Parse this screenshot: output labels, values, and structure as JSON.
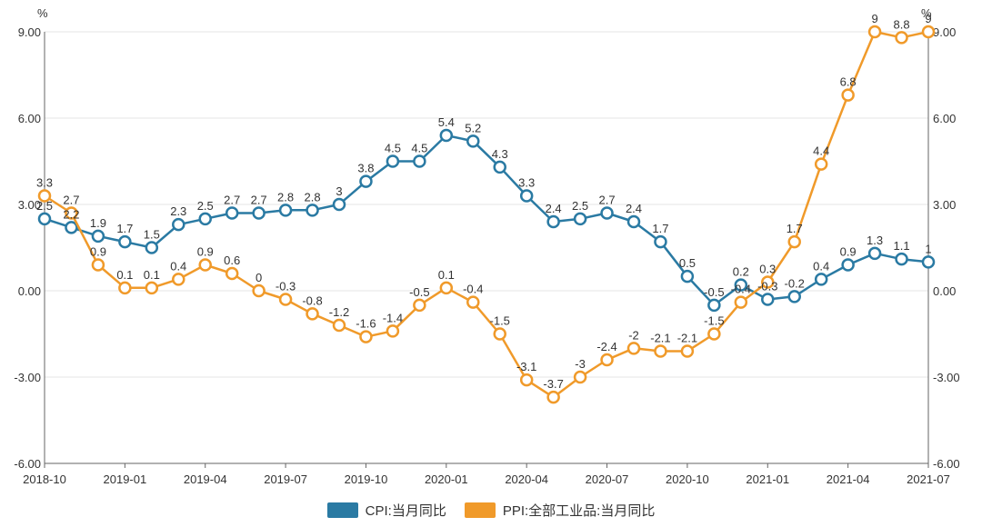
{
  "chart_data": {
    "type": "line",
    "title": "",
    "left_unit": "%",
    "right_unit": "%",
    "ylim": [
      -6,
      9
    ],
    "y_ticks": [
      "9.00",
      "6.00",
      "3.00",
      "0.00",
      "-3.00",
      "-6.00"
    ],
    "y_tick_values": [
      9,
      6,
      3,
      0,
      -3,
      -6
    ],
    "x_tick_labels": [
      "2018-10",
      "2019-01",
      "2019-04",
      "2019-07",
      "2019-10",
      "2020-01",
      "2020-04",
      "2020-07",
      "2020-10",
      "2021-01",
      "2021-04",
      "2021-07"
    ],
    "x": [
      "2018-10",
      "2018-11",
      "2018-12",
      "2019-01",
      "2019-02",
      "2019-03",
      "2019-04",
      "2019-05",
      "2019-06",
      "2019-07",
      "2019-08",
      "2019-09",
      "2019-10",
      "2019-11",
      "2019-12",
      "2020-01",
      "2020-02",
      "2020-03",
      "2020-04",
      "2020-05",
      "2020-06",
      "2020-07",
      "2020-08",
      "2020-09",
      "2020-10",
      "2020-11",
      "2020-12",
      "2021-01",
      "2021-02",
      "2021-03",
      "2021-04",
      "2021-05",
      "2021-06",
      "2021-07"
    ],
    "grid": true,
    "legend_position": "bottom-center",
    "series": [
      {
        "name": "CPI:当月同比",
        "color": "#2a7aa3",
        "values": [
          2.5,
          2.2,
          1.9,
          1.7,
          1.5,
          2.3,
          2.5,
          2.7,
          2.7,
          2.8,
          2.8,
          3,
          3.8,
          4.5,
          4.5,
          5.4,
          5.2,
          4.3,
          3.3,
          2.4,
          2.5,
          2.7,
          2.4,
          1.7,
          0.5,
          -0.5,
          0.2,
          -0.3,
          -0.2,
          0.4,
          0.9,
          1.3,
          1.1,
          1
        ],
        "labels": [
          "2.5",
          "2.2",
          "1.9",
          "1.7",
          "1.5",
          "2.3",
          "2.5",
          "2.7",
          "2.7",
          "2.8",
          "2.8",
          "3",
          "3.8",
          "4.5",
          "4.5",
          "5.4",
          "5.2",
          "4.3",
          "3.3",
          "2.4",
          "2.5",
          "2.7",
          "2.4",
          "1.7",
          "0.5",
          "-0.5",
          "0.2",
          "-0.3",
          "-0.2",
          "0.4",
          "0.9",
          "1.3",
          "1.1",
          "1"
        ]
      },
      {
        "name": "PPI:全部工业品:当月同比",
        "color": "#f09a2a",
        "values": [
          3.3,
          2.7,
          0.9,
          0.1,
          0.1,
          0.4,
          0.9,
          0.6,
          0,
          -0.3,
          -0.8,
          -1.2,
          -1.6,
          -1.4,
          -0.5,
          0.1,
          -0.4,
          -1.5,
          -3.1,
          -3.7,
          -3,
          -2.4,
          -2,
          -2.1,
          -2.1,
          -1.5,
          -0.4,
          0.3,
          1.7,
          4.4,
          6.8,
          9,
          8.8,
          9
        ],
        "labels": [
          "3.3",
          "2.7",
          "0.9",
          "0.1",
          "0.1",
          "0.4",
          "0.9",
          "0.6",
          "0",
          "-0.3",
          "-0.8",
          "-1.2",
          "-1.6",
          "-1.4",
          "-0.5",
          "0.1",
          "-0.4",
          "-1.5",
          "-3.1",
          "-3.7",
          "-3",
          "-2.4",
          "-2",
          "-2.1",
          "-2.1",
          "-1.5",
          "-0.4",
          "0.3",
          "1.7",
          "4.4",
          "6.8",
          "9",
          "8.8",
          "9"
        ]
      }
    ]
  }
}
